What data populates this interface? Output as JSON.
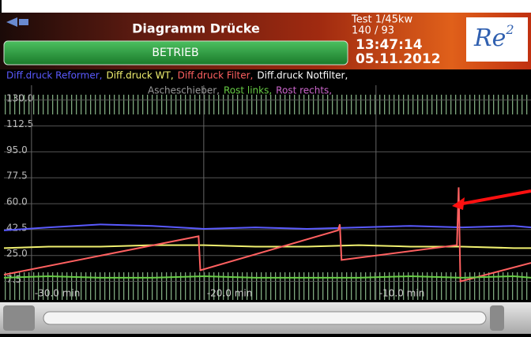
{
  "header": {
    "title": "Diagramm Drücke",
    "status": "BETRIEB",
    "info": [
      "Test 1/45kw",
      "140 / 93"
    ],
    "time": "13:47:14",
    "date": "05.11.2012",
    "logo": {
      "text": "Re",
      "sup": "2"
    }
  },
  "chart_data": {
    "type": "line",
    "xlim": [
      -31.6,
      -1
    ],
    "xticks": [
      {
        "value": -30,
        "label": "-30.0 min"
      },
      {
        "value": -20,
        "label": "-20.0 min"
      },
      {
        "value": -10,
        "label": "-10.0 min"
      }
    ],
    "ylim": [
      -5,
      140
    ],
    "yticks": [
      {
        "value": 130,
        "label": "130.0"
      },
      112.5,
      {
        "value": 95,
        "label": "95.0"
      },
      77.5,
      {
        "value": 60,
        "label": "60.0"
      },
      42.5,
      {
        "value": 25,
        "label": "25.0"
      },
      7.5
    ],
    "grid": true,
    "series": [
      {
        "name": "Diff.druck Reformer,",
        "color": "#5a5aff",
        "x": [
          -31.6,
          -29,
          -26,
          -23,
          -20,
          -17,
          -14,
          -11,
          -8,
          -5,
          -2,
          -1
        ],
        "values": [
          42,
          44,
          46,
          45,
          43,
          44,
          43,
          44,
          45,
          44,
          45,
          44
        ]
      },
      {
        "name": "Diff.druck WT,",
        "color": "#f0f070",
        "x": [
          -31.6,
          -29,
          -26,
          -23,
          -20,
          -17,
          -14,
          -11,
          -8,
          -5,
          -2,
          -1
        ],
        "values": [
          30,
          31,
          31,
          32,
          32,
          31,
          31,
          32,
          31,
          31,
          30,
          30
        ]
      },
      {
        "name": "Diff.druck Filter,",
        "color": "#ff6060",
        "x": [
          -31.6,
          -20.3,
          -20.2,
          -12.2,
          -12.1,
          -12.0,
          -5.3,
          -5.2,
          -5.1,
          -1
        ],
        "values": [
          12,
          38,
          15,
          42,
          46,
          22,
          32,
          71,
          7.5,
          20
        ]
      },
      {
        "name": "Diff.druck Notfilter,",
        "color": "#ffffff",
        "x": [],
        "values": []
      },
      {
        "name": "Ascheschieber,",
        "color": "#9a9a9a",
        "x": [],
        "values": []
      },
      {
        "name": "Rost links,",
        "color": "#66cc44",
        "x": [
          -31.6,
          -29,
          -26,
          -23,
          -20,
          -17,
          -14,
          -11,
          -8,
          -5,
          -2,
          -1
        ],
        "values": [
          10,
          11,
          10,
          10,
          11,
          10,
          10,
          10,
          11,
          10,
          11,
          10
        ]
      },
      {
        "name": "Rost rechts,",
        "color": "#cc66cc",
        "x": [],
        "values": []
      }
    ]
  }
}
